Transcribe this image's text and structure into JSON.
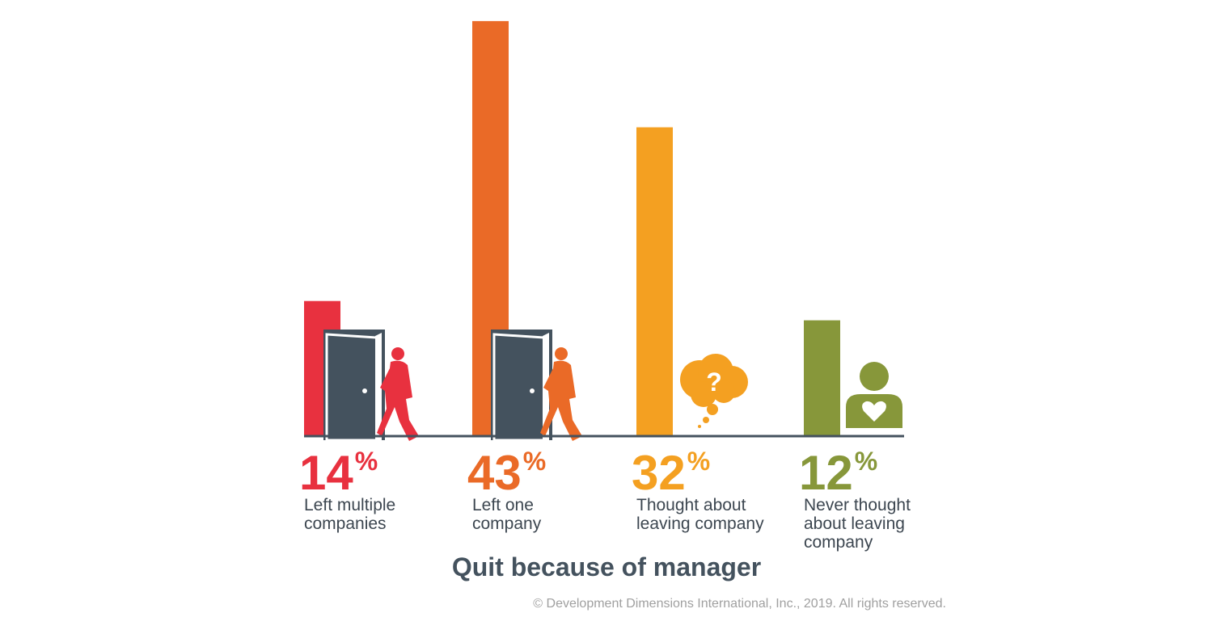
{
  "chart_data": {
    "type": "bar",
    "title": "Quit because of manager",
    "categories": [
      "Left multiple companies",
      "Left one company",
      "Thought about leaving company",
      "Never thought about leaving company"
    ],
    "values": [
      14,
      43,
      32,
      12
    ],
    "value_labels": [
      "14%",
      "43%",
      "32%",
      "12%"
    ],
    "colors": [
      "#e8313f",
      "#ea6a27",
      "#f4a021",
      "#87973a"
    ],
    "footnote": "© Development Dimensions International, Inc., 2019. All rights reserved."
  }
}
